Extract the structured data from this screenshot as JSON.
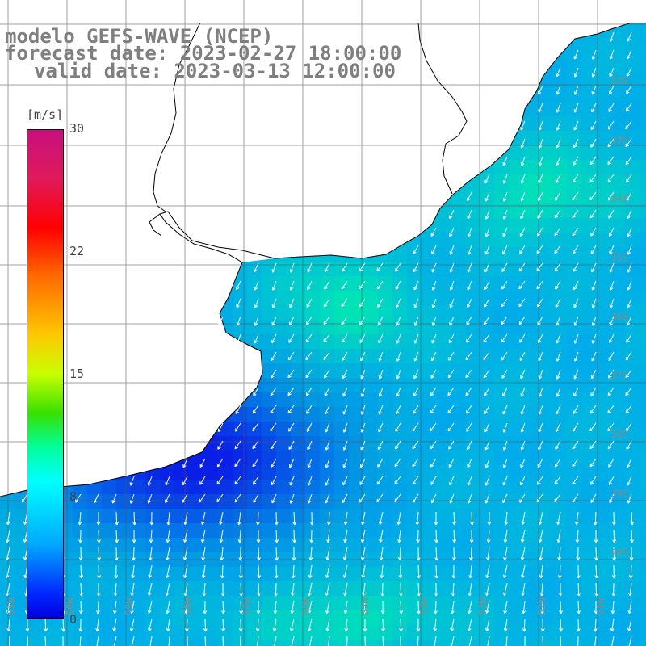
{
  "title": {
    "line1": "modelo GEFS-WAVE (NCEP)",
    "line2": "forecast date: 2023-02-27 18:00:00",
    "line3": "valid date: 2023-03-13 12:00:00"
  },
  "colorbar": {
    "unit": "[m/s]",
    "ticks": [
      "30",
      "22",
      "15",
      "8",
      "0"
    ]
  },
  "lat_labels": [
    "32S",
    "33S",
    "34S",
    "35S",
    "36S",
    "37S",
    "38S",
    "39S",
    "40S"
  ],
  "lon_labels": [
    "61W",
    "60W",
    "59W",
    "58W",
    "57W",
    "56W",
    "55W",
    "54W",
    "53W",
    "52W",
    "51W"
  ],
  "colors": {
    "land": "#ffffff",
    "ocean_low": "#0a1ee6",
    "ocean_mid": "#00a0f5",
    "ocean_high": "#00e6b4",
    "arrows": "#ffffff",
    "grid": "#555555",
    "coast": "#000000",
    "title_text": "#7f7f7f"
  }
}
